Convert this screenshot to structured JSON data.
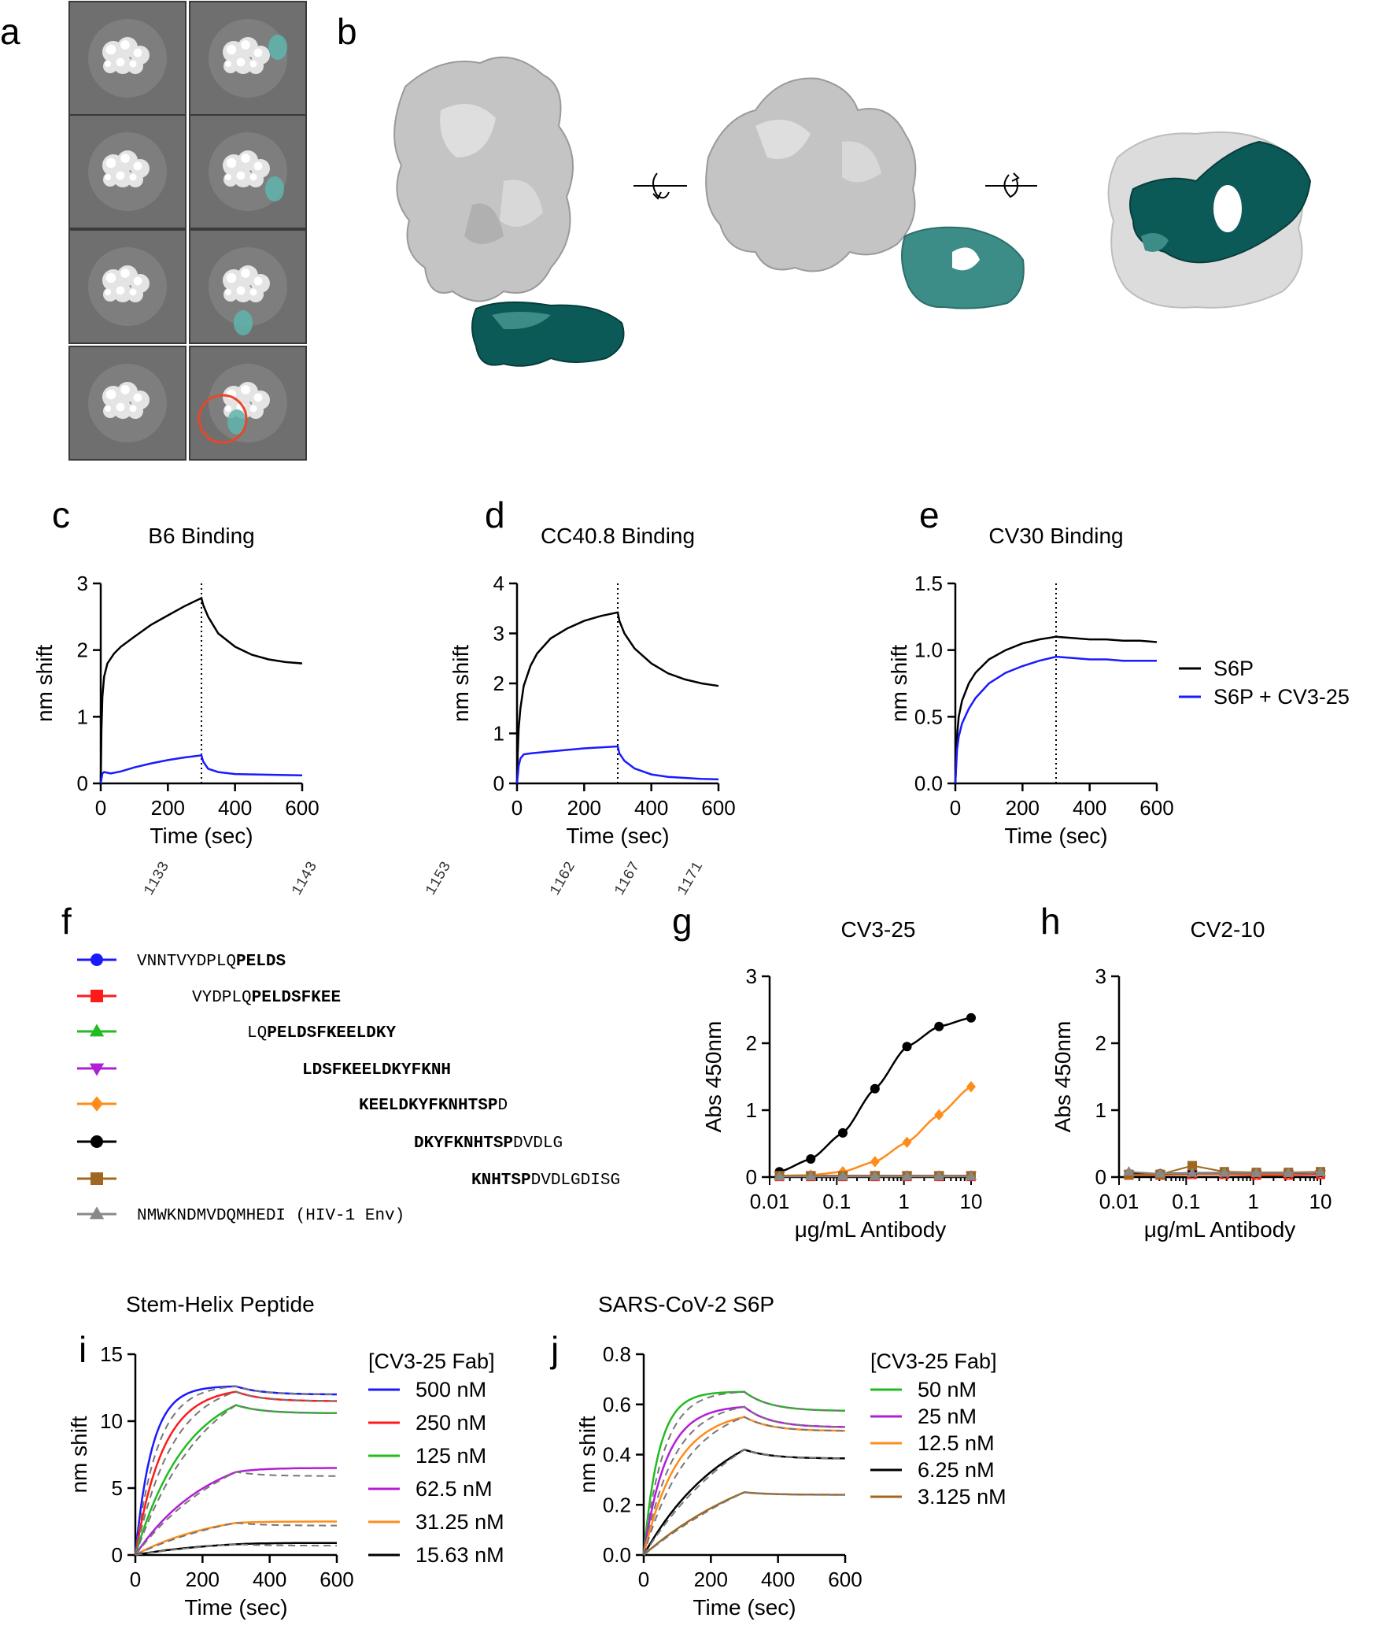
{
  "panel_labels": [
    "a",
    "b",
    "c",
    "d",
    "e",
    "f",
    "g",
    "h",
    "i",
    "j"
  ],
  "colors": {
    "black": "#000000",
    "blue": "#1a1aff",
    "red": "#ff1a1a",
    "green": "#22bb22",
    "purple": "#b01fd6",
    "orange": "#ff8c1a",
    "brown": "#a0681e",
    "gray": "#888888",
    "teal": "#0b5a57",
    "teal_light": "#3c8c88",
    "em_bg": "#6f6f6f",
    "circle": "#e8462a"
  },
  "panel_a": {
    "class_averages": [
      {
        "col": 0,
        "row": 0,
        "fab": false
      },
      {
        "col": 1,
        "row": 0,
        "fab": true
      },
      {
        "col": 0,
        "row": 1,
        "fab": false
      },
      {
        "col": 1,
        "row": 1,
        "fab": true
      },
      {
        "col": 0,
        "row": 2,
        "fab": false
      },
      {
        "col": 1,
        "row": 2,
        "fab": true
      },
      {
        "col": 0,
        "row": 3,
        "fab": false
      },
      {
        "col": 1,
        "row": 3,
        "fab": true,
        "circled": true
      }
    ]
  },
  "panel_b": {
    "views": 3,
    "rotation_icons": 2
  },
  "chart_data": [
    {
      "id": "c",
      "type": "line",
      "title": "B6 Binding",
      "xlabel": "Time (sec)",
      "ylabel": "nm shift",
      "xlim": [
        0,
        600
      ],
      "ylim": [
        0,
        3
      ],
      "xticks": [
        "0",
        "200",
        "400",
        "600"
      ],
      "yticks": [
        "0",
        "1",
        "2",
        "3"
      ],
      "dissociation_start": 300,
      "series": [
        {
          "color": "black",
          "x": [
            0,
            2,
            5,
            10,
            20,
            40,
            60,
            100,
            150,
            200,
            250,
            300,
            305,
            320,
            350,
            400,
            450,
            500,
            550,
            600
          ],
          "y": [
            0,
            0.8,
            1.3,
            1.6,
            1.8,
            1.95,
            2.05,
            2.2,
            2.38,
            2.52,
            2.66,
            2.78,
            2.68,
            2.5,
            2.25,
            2.05,
            1.93,
            1.86,
            1.82,
            1.8
          ]
        },
        {
          "color": "blue",
          "x": [
            0,
            5,
            10,
            30,
            60,
            100,
            150,
            200,
            250,
            300,
            305,
            320,
            350,
            400,
            500,
            600
          ],
          "y": [
            0,
            0.15,
            0.17,
            0.15,
            0.18,
            0.24,
            0.3,
            0.35,
            0.39,
            0.42,
            0.33,
            0.22,
            0.17,
            0.14,
            0.13,
            0.12
          ]
        }
      ]
    },
    {
      "id": "d",
      "type": "line",
      "title": "CC40.8 Binding",
      "xlabel": "Time (sec)",
      "ylabel": "nm shift",
      "xlim": [
        0,
        600
      ],
      "ylim": [
        0,
        4
      ],
      "xticks": [
        "0",
        "200",
        "400",
        "600"
      ],
      "yticks": [
        "0",
        "1",
        "2",
        "3",
        "4"
      ],
      "dissociation_start": 300,
      "series": [
        {
          "color": "black",
          "x": [
            0,
            2,
            5,
            10,
            20,
            40,
            60,
            100,
            150,
            200,
            250,
            300,
            305,
            320,
            350,
            400,
            450,
            500,
            550,
            600
          ],
          "y": [
            0,
            0.6,
            1.1,
            1.5,
            1.95,
            2.35,
            2.6,
            2.9,
            3.1,
            3.25,
            3.35,
            3.42,
            3.25,
            3.0,
            2.7,
            2.4,
            2.2,
            2.08,
            2.0,
            1.95
          ]
        },
        {
          "color": "blue",
          "x": [
            0,
            5,
            10,
            20,
            40,
            100,
            200,
            300,
            305,
            320,
            350,
            400,
            450,
            500,
            550,
            600
          ],
          "y": [
            0,
            0.35,
            0.5,
            0.58,
            0.6,
            0.64,
            0.7,
            0.74,
            0.6,
            0.45,
            0.3,
            0.18,
            0.13,
            0.11,
            0.09,
            0.08
          ]
        }
      ]
    },
    {
      "id": "e",
      "type": "line",
      "title": "CV30 Binding",
      "xlabel": "Time (sec)",
      "ylabel": "nm shift",
      "xlim": [
        0,
        600
      ],
      "ylim": [
        0,
        1.5
      ],
      "xticks": [
        "0",
        "200",
        "400",
        "600"
      ],
      "yticks": [
        "0.0",
        "0.5",
        "1.0",
        "1.5"
      ],
      "dissociation_start": 300,
      "legend": [
        "S6P",
        "S6P + CV3-25"
      ],
      "series": [
        {
          "name": "S6P",
          "color": "black",
          "x": [
            0,
            5,
            10,
            20,
            40,
            60,
            100,
            150,
            200,
            250,
            300,
            350,
            400,
            450,
            500,
            550,
            600
          ],
          "y": [
            0,
            0.35,
            0.5,
            0.62,
            0.75,
            0.83,
            0.93,
            1.0,
            1.05,
            1.08,
            1.1,
            1.09,
            1.08,
            1.08,
            1.07,
            1.07,
            1.06
          ]
        },
        {
          "name": "S6P + CV3-25",
          "color": "blue",
          "x": [
            0,
            5,
            10,
            20,
            40,
            60,
            100,
            150,
            200,
            250,
            300,
            350,
            400,
            450,
            500,
            550,
            600
          ],
          "y": [
            0,
            0.25,
            0.35,
            0.45,
            0.56,
            0.64,
            0.75,
            0.83,
            0.88,
            0.92,
            0.95,
            0.94,
            0.93,
            0.93,
            0.92,
            0.92,
            0.92
          ]
        }
      ]
    },
    {
      "id": "g",
      "type": "scatter",
      "title": "CV3-25",
      "xlabel": "μg/mL Antibody",
      "ylabel": "Abs 450nm",
      "xscale": "log",
      "xlim": [
        0.01,
        10
      ],
      "ylim": [
        0,
        3
      ],
      "xticks": [
        "0.01",
        "0.1",
        "1",
        "10"
      ],
      "yticks": [
        "0",
        "1",
        "2",
        "3"
      ],
      "x": [
        0.014,
        0.041,
        0.123,
        0.37,
        1.11,
        3.33,
        10
      ],
      "series": [
        {
          "color": "blue",
          "marker": "circle",
          "y": [
            0.02,
            0.02,
            0.02,
            0.02,
            0.02,
            0.02,
            0.02
          ]
        },
        {
          "color": "red",
          "marker": "square",
          "y": [
            0.01,
            0.01,
            0.01,
            0.01,
            0.01,
            0.01,
            0.01
          ]
        },
        {
          "color": "green",
          "marker": "triangle-up",
          "y": [
            0.02,
            0.02,
            0.02,
            0.02,
            0.02,
            0.02,
            0.02
          ]
        },
        {
          "color": "purple",
          "marker": "triangle-down",
          "y": [
            0.02,
            0.02,
            0.02,
            0.02,
            0.02,
            0.02,
            0.02
          ]
        },
        {
          "color": "orange",
          "marker": "diamond",
          "y": [
            0.02,
            0.03,
            0.08,
            0.23,
            0.52,
            0.93,
            1.35
          ]
        },
        {
          "color": "black",
          "marker": "circle",
          "y": [
            0.08,
            0.27,
            0.66,
            1.32,
            1.95,
            2.25,
            2.38
          ]
        },
        {
          "color": "brown",
          "marker": "square",
          "y": [
            0.02,
            0.02,
            0.02,
            0.02,
            0.02,
            0.02,
            0.02
          ]
        },
        {
          "color": "gray",
          "marker": "triangle-up",
          "y": [
            0.01,
            0.01,
            0.01,
            0.01,
            0.01,
            0.01,
            0.01
          ]
        }
      ]
    },
    {
      "id": "h",
      "type": "scatter",
      "title": "CV2-10",
      "xlabel": "μg/mL Antibody",
      "ylabel": "Abs 450nm",
      "xscale": "log",
      "xlim": [
        0.01,
        10
      ],
      "ylim": [
        0,
        3
      ],
      "xticks": [
        "0.01",
        "0.1",
        "1",
        "10"
      ],
      "yticks": [
        "0",
        "1",
        "2",
        "3"
      ],
      "x": [
        0.014,
        0.041,
        0.123,
        0.37,
        1.11,
        3.33,
        10
      ],
      "series": [
        {
          "color": "blue",
          "marker": "circle",
          "y": [
            0.05,
            0.04,
            0.05,
            0.05,
            0.05,
            0.05,
            0.06
          ]
        },
        {
          "color": "red",
          "marker": "square",
          "y": [
            0.03,
            0.03,
            0.04,
            0.04,
            0.03,
            0.03,
            0.04
          ]
        },
        {
          "color": "green",
          "marker": "triangle-up",
          "y": [
            0.05,
            0.05,
            0.06,
            0.06,
            0.06,
            0.06,
            0.07
          ]
        },
        {
          "color": "purple",
          "marker": "triangle-down",
          "y": [
            0.04,
            0.04,
            0.05,
            0.05,
            0.05,
            0.05,
            0.05
          ]
        },
        {
          "color": "orange",
          "marker": "diamond",
          "y": [
            0.04,
            0.04,
            0.05,
            0.05,
            0.05,
            0.05,
            0.06
          ]
        },
        {
          "color": "black",
          "marker": "circle",
          "y": [
            0.05,
            0.05,
            0.06,
            0.06,
            0.06,
            0.06,
            0.07
          ]
        },
        {
          "color": "brown",
          "marker": "square",
          "y": [
            0.04,
            0.04,
            0.17,
            0.08,
            0.07,
            0.07,
            0.08
          ]
        },
        {
          "color": "gray",
          "marker": "triangle-up",
          "y": [
            0.08,
            0.05,
            0.06,
            0.06,
            0.06,
            0.06,
            0.07
          ]
        }
      ]
    },
    {
      "id": "i",
      "type": "line",
      "title": "Stem-Helix Peptide",
      "xlabel": "Time (sec)",
      "ylabel": "nm shift",
      "xlim": [
        0,
        600
      ],
      "ylim": [
        0,
        15
      ],
      "xticks": [
        "0",
        "200",
        "400",
        "600"
      ],
      "yticks": [
        "0",
        "5",
        "10",
        "15"
      ],
      "legend_title": "[CV3-25 Fab]",
      "dissociation_start": 300,
      "series": [
        {
          "name": "500 nM",
          "color": "blue",
          "assoc_max": 12.6,
          "k_on": 0.02,
          "dissoc_end": 12.0
        },
        {
          "name": "250 nM",
          "color": "red",
          "assoc_max": 12.2,
          "k_on": 0.012,
          "dissoc_end": 11.5
        },
        {
          "name": "125 nM",
          "color": "green",
          "assoc_max": 11.2,
          "k_on": 0.0065,
          "dissoc_end": 10.6
        },
        {
          "name": "62.5 nM",
          "color": "purple",
          "assoc_max": 6.2,
          "k_on": 0.0045,
          "dissoc_end": 6.5,
          "fit_end": 5.9
        },
        {
          "name": "31.25 nM",
          "color": "orange",
          "assoc_max": 2.4,
          "k_on": 0.004,
          "dissoc_end": 2.5,
          "fit_end": 2.2
        },
        {
          "name": "15.63 nM",
          "color": "black",
          "assoc_max": 0.8,
          "k_on": 0.004,
          "dissoc_end": 0.9,
          "fit_end": 0.7
        }
      ]
    },
    {
      "id": "j",
      "type": "line",
      "title": "SARS-CoV-2 S6P",
      "xlabel": "Time (sec)",
      "ylabel": "nm shift",
      "xlim": [
        0,
        600
      ],
      "ylim": [
        0,
        0.8
      ],
      "xticks": [
        "0",
        "200",
        "400",
        "600"
      ],
      "yticks": [
        "0.0",
        "0.2",
        "0.4",
        "0.6",
        "0.8"
      ],
      "legend_title": "[CV3-25 Fab]",
      "dissociation_start": 300,
      "series": [
        {
          "name": "50 nM",
          "color": "green",
          "assoc_max": 0.65,
          "k_on": 0.022,
          "dissoc_end": 0.575
        },
        {
          "name": "25 nM",
          "color": "purple",
          "assoc_max": 0.59,
          "k_on": 0.015,
          "dissoc_end": 0.51
        },
        {
          "name": "12.5 nM",
          "color": "orange",
          "assoc_max": 0.55,
          "k_on": 0.01,
          "dissoc_end": 0.495
        },
        {
          "name": "6.25 nM",
          "color": "black",
          "assoc_max": 0.42,
          "k_on": 0.004,
          "dissoc_end": 0.385
        },
        {
          "name": "3.125 nM",
          "color": "brown",
          "assoc_max": 0.25,
          "k_on": 0.0025,
          "dissoc_end": 0.24
        }
      ]
    }
  ],
  "panel_f": {
    "residue_numbers": [
      "1133",
      "1143",
      "1153",
      "1162",
      "1167",
      "1171"
    ],
    "peptides": [
      {
        "color": "blue",
        "marker": "circle",
        "plain_left": "VNNTVYDPLQ",
        "bold": "PELDS",
        "plain_right": "",
        "indent": 0
      },
      {
        "color": "red",
        "marker": "square",
        "plain_left": "VYDPLQ",
        "bold": "PELDSFKEE",
        "plain_right": "",
        "indent": 4
      },
      {
        "color": "green",
        "marker": "triangle-up",
        "plain_left": "LQ",
        "bold": "PELDSFKEELDKY",
        "plain_right": "",
        "indent": 8
      },
      {
        "color": "purple",
        "marker": "triangle-down",
        "plain_left": "",
        "bold": "LDSFKEELDKYFKNH",
        "plain_right": "",
        "indent": 12
      },
      {
        "color": "orange",
        "marker": "diamond",
        "plain_left": "",
        "bold": "KEELDKYFKNHTSP",
        "plain_right": "D",
        "indent": 16
      },
      {
        "color": "black",
        "marker": "circle",
        "plain_left": "",
        "bold": "DKYFKNHTSP",
        "plain_right": "DVDLG",
        "indent": 20
      },
      {
        "color": "brown",
        "marker": "square",
        "plain_left": "",
        "bold": "KNHTSP",
        "plain_right": "DVDLGDISG",
        "indent": 24
      },
      {
        "color": "gray",
        "marker": "triangle-up",
        "plain_left": "NMWKNDMVDQMHEDI  (HIV-1  Env)",
        "bold": "",
        "plain_right": "",
        "indent": 0
      }
    ]
  }
}
